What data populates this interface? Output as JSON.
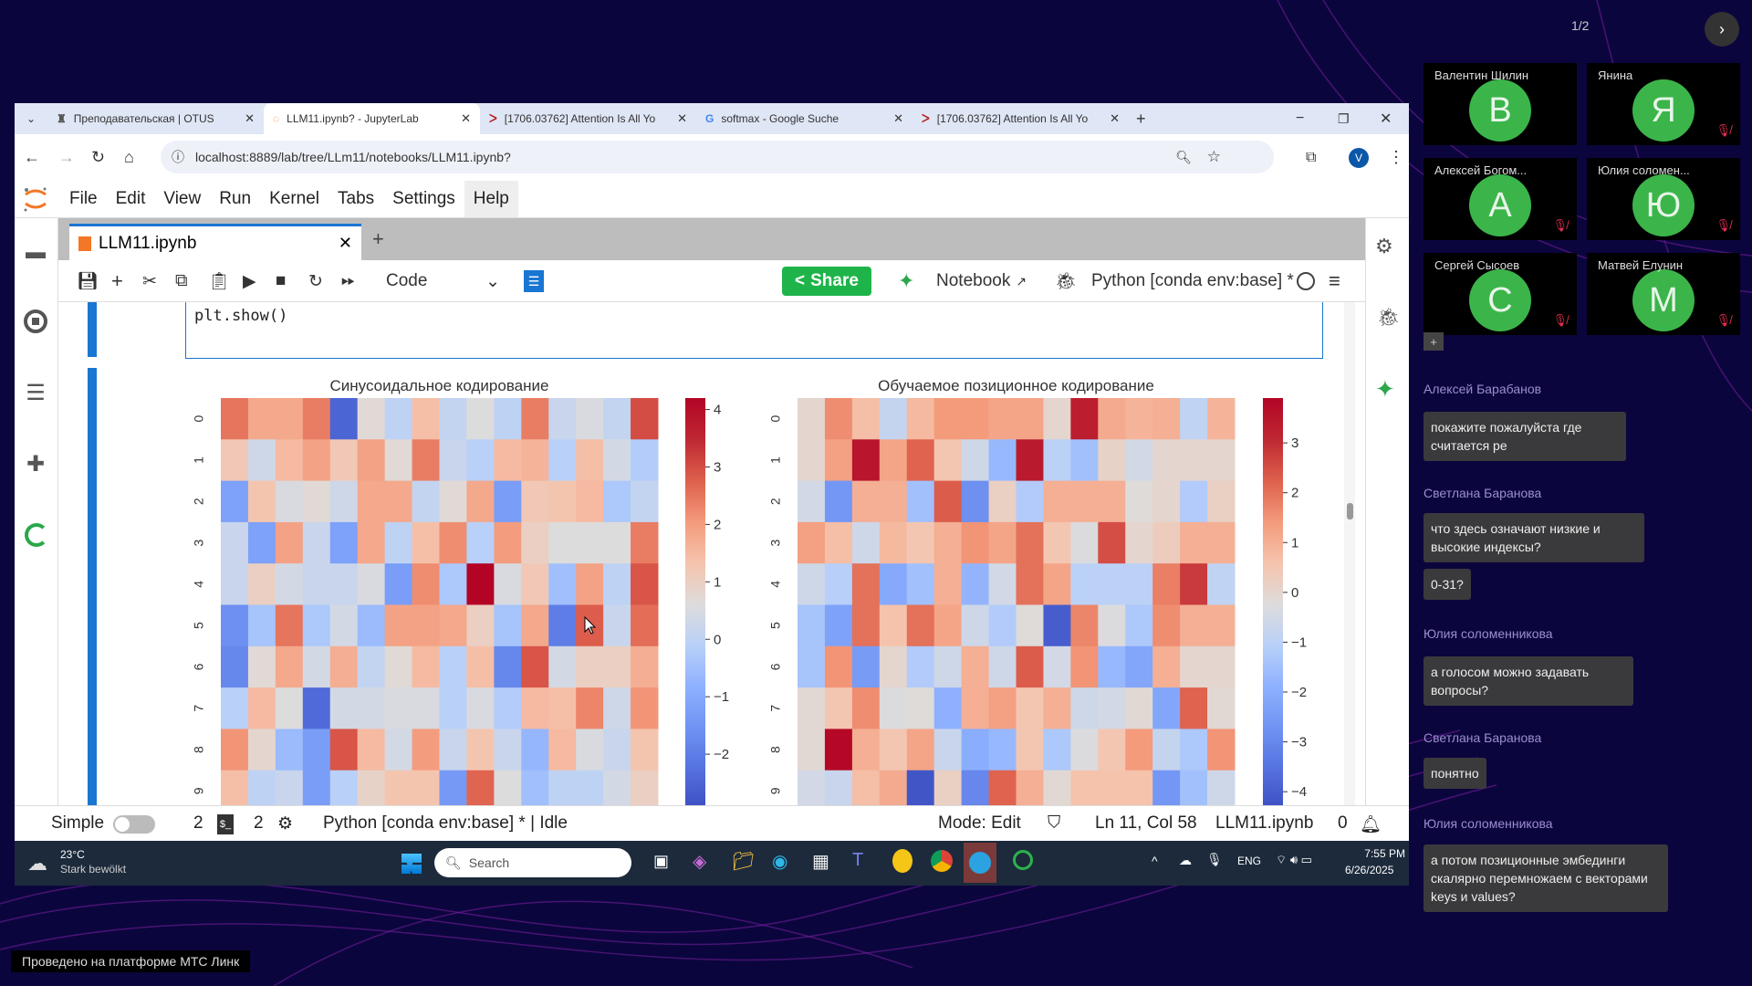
{
  "meeting": {
    "page": "1/2",
    "next_icon": "chevron-right-icon",
    "participants": [
      {
        "name": "Валентин Шилин",
        "initial": "В",
        "muted": false
      },
      {
        "name": "Янина",
        "initial": "Я",
        "muted": true
      },
      {
        "name": "Алексей Богом...",
        "initial": "А",
        "muted": true
      },
      {
        "name": "Юлия соломен...",
        "initial": "Ю",
        "muted": true
      },
      {
        "name": "Сергей Сысоев",
        "initial": "С",
        "muted": true
      },
      {
        "name": "Матвей Елунин",
        "initial": "М",
        "muted": true
      }
    ],
    "add_label": "+",
    "chat": [
      {
        "author": "Алексей Барабанов",
        "messages": [
          "покажите пожалуйста где считается ре"
        ]
      },
      {
        "author": "Светлана Баранова",
        "messages": [
          "что здесь означают низкие и высокие индексы?",
          "0-31?"
        ]
      },
      {
        "author": "Юлия соломенникова",
        "messages": [
          "а голосом можно задавать вопросы?"
        ]
      },
      {
        "author": "Светлана Баранова",
        "messages": [
          "понятно"
        ]
      },
      {
        "author": "Юлия соломенникова",
        "messages": [
          "а потом позиционные эмбединги скалярно перемножаем с векторами  keys и values?"
        ]
      }
    ],
    "platform_label": "Проведено на платформе МТС Линк"
  },
  "browser": {
    "tabs": [
      {
        "title": "Преподавательская | OTUS",
        "active": false
      },
      {
        "title": "LLM11.ipynb? - JupyterLab",
        "active": true
      },
      {
        "title": "[1706.03762] Attention Is All Yo",
        "active": false
      },
      {
        "title": "softmax - Google Suche",
        "active": false
      },
      {
        "title": "[1706.03762] Attention Is All Yo",
        "active": false
      }
    ],
    "url": "localhost:8889/lab/tree/LLm11/notebooks/LLM11.ipynb?",
    "profile_initial": "V"
  },
  "jupyter": {
    "menu": [
      "File",
      "Edit",
      "View",
      "Run",
      "Kernel",
      "Tabs",
      "Settings",
      "Help"
    ],
    "doc_tab": "LLM11.ipynb",
    "cell_type": "Code",
    "share_label": "Share",
    "notebook_label": "Notebook",
    "kernel_label": "Python [conda env:base] *",
    "code_line": "plt.show()",
    "status": {
      "mode_label": "Simple",
      "terminals": "2",
      "kernels": "2",
      "kernel_status": "Python [conda env:base] * | Idle",
      "edit_mode": "Mode: Edit",
      "cursor": "Ln 11, Col 58",
      "file": "LLM11.ipynb",
      "notifications": "0"
    }
  },
  "taskbar": {
    "temperature": "23°C",
    "weather": "Stark bewölkt",
    "search_placeholder": "Search",
    "language": "ENG",
    "time": "7:55 PM",
    "date": "6/26/2025"
  },
  "chart_data": [
    {
      "type": "heatmap",
      "title": "Синусоидальное кодирование",
      "colormap": "coolwarm",
      "vmin": -3.0,
      "vmax": 4.2,
      "yticks": [
        "0",
        "1",
        "2",
        "3",
        "4",
        "5",
        "6",
        "7",
        "8",
        "9"
      ],
      "cbar_ticks": [
        4,
        3,
        2,
        1,
        0,
        -1,
        -2
      ],
      "values": [
        [
          2.5,
          1.8,
          1.8,
          2.4,
          -2.5,
          0.7,
          0.0,
          1.4,
          0.1,
          0.6,
          0.0,
          2.4,
          0.2,
          0.5,
          0.1,
          3.0
        ],
        [
          1.2,
          0.3,
          1.5,
          1.9,
          1.2,
          1.9,
          0.7,
          2.4,
          0.2,
          -0.1,
          1.5,
          1.6,
          -0.1,
          1.4,
          0.4,
          -0.2
        ],
        [
          -1.2,
          1.3,
          0.5,
          0.7,
          0.3,
          1.8,
          1.8,
          0.1,
          0.7,
          1.8,
          -1.3,
          1.2,
          1.3,
          1.5,
          -0.3,
          0.1
        ],
        [
          0.2,
          -1.2,
          1.9,
          0.2,
          -1.2,
          1.8,
          0.0,
          1.4,
          2.2,
          -0.1,
          2.0,
          1.0,
          0.6,
          0.6,
          0.6,
          2.4
        ],
        [
          0.2,
          1.0,
          0.4,
          0.2,
          0.2,
          0.5,
          -1.3,
          2.2,
          -0.3,
          4.2,
          0.5,
          1.2,
          -0.5,
          1.9,
          0.0,
          2.9
        ],
        [
          -1.6,
          -0.4,
          2.5,
          -0.3,
          0.4,
          -0.6,
          1.9,
          1.9,
          1.8,
          1.0,
          -0.4,
          1.8,
          -2.0,
          2.8,
          0.2,
          2.6
        ],
        [
          -1.8,
          0.7,
          1.8,
          0.4,
          1.7,
          0.1,
          0.7,
          1.5,
          -0.1,
          1.4,
          -1.8,
          2.9,
          0.4,
          1.0,
          1.0,
          1.7
        ],
        [
          -0.1,
          1.5,
          0.6,
          -2.4,
          0.4,
          0.4,
          0.5,
          0.5,
          -0.1,
          0.5,
          -0.2,
          1.5,
          1.4,
          2.3,
          0.3,
          2.1
        ],
        [
          2.1,
          0.8,
          -0.6,
          -1.3,
          2.9,
          1.5,
          0.4,
          2.0,
          0.2,
          1.3,
          0.2,
          -0.7,
          1.5,
          0.5,
          0.2,
          1.3
        ],
        [
          1.4,
          0.0,
          0.2,
          -1.3,
          -0.1,
          0.9,
          1.3,
          1.3,
          -1.4,
          2.7,
          0.6,
          -0.5,
          0.0,
          0.0,
          0.4,
          1.0
        ]
      ]
    },
    {
      "type": "heatmap",
      "title": "Обучаемое позиционное кодирование",
      "colormap": "coolwarm",
      "vmin": -4.4,
      "vmax": 3.9,
      "yticks": [
        "0",
        "1",
        "2",
        "3",
        "4",
        "5",
        "6",
        "7",
        "8",
        "9"
      ],
      "cbar_ticks": [
        3,
        2,
        1,
        0,
        -1,
        -2,
        -3,
        -4
      ],
      "values": [
        [
          0.0,
          1.6,
          0.7,
          -0.8,
          0.8,
          1.4,
          1.4,
          1.2,
          1.2,
          0.0,
          3.3,
          1.1,
          0.9,
          1.0,
          -0.9,
          0.9
        ],
        [
          0.0,
          1.3,
          3.5,
          1.2,
          2.2,
          0.5,
          -0.6,
          -1.7,
          3.4,
          -1.0,
          -1.5,
          0.1,
          -0.5,
          0.0,
          0.0,
          0.0
        ],
        [
          -0.5,
          -2.6,
          1.0,
          1.0,
          -1.5,
          2.3,
          -2.8,
          0.2,
          -1.2,
          1.0,
          1.0,
          1.0,
          -0.2,
          0.0,
          -1.2,
          0.2
        ],
        [
          1.3,
          0.7,
          -0.6,
          0.8,
          0.5,
          1.0,
          1.5,
          1.2,
          2.0,
          0.5,
          -0.3,
          2.5,
          0.0,
          0.3,
          1.0,
          1.0
        ],
        [
          -0.6,
          -1.1,
          2.0,
          -2.1,
          -1.5,
          1.0,
          -1.8,
          -0.5,
          2.0,
          1.2,
          -1.0,
          -1.0,
          -1.0,
          1.8,
          2.8,
          -0.9
        ],
        [
          -1.4,
          -2.3,
          2.0,
          0.6,
          2.0,
          1.2,
          -0.6,
          -1.2,
          -0.2,
          -4.0,
          1.7,
          -0.3,
          -1.3,
          1.6,
          1.0,
          1.0
        ],
        [
          -1.4,
          1.5,
          -2.5,
          0.0,
          -1.2,
          -0.6,
          1.0,
          -0.6,
          2.3,
          -0.5,
          1.5,
          -1.7,
          -2.2,
          1.0,
          0.0,
          0.0
        ],
        [
          -0.1,
          0.5,
          1.6,
          -0.3,
          -0.2,
          -1.9,
          1.0,
          1.3,
          0.5,
          1.0,
          -0.6,
          -0.5,
          -0.1,
          -2.2,
          2.2,
          -0.1
        ],
        [
          -0.1,
          3.8,
          1.0,
          0.5,
          1.2,
          -0.7,
          -2.0,
          -1.7,
          0.5,
          -1.3,
          -0.3,
          0.5,
          1.4,
          -0.8,
          -1.3,
          1.5
        ],
        [
          -0.5,
          -0.7,
          0.7,
          1.1,
          -4.2,
          0.2,
          -3.0,
          2.2,
          1.0,
          -0.1,
          0.6,
          0.6,
          0.6,
          -2.6,
          -1.5,
          -0.6
        ]
      ]
    }
  ]
}
